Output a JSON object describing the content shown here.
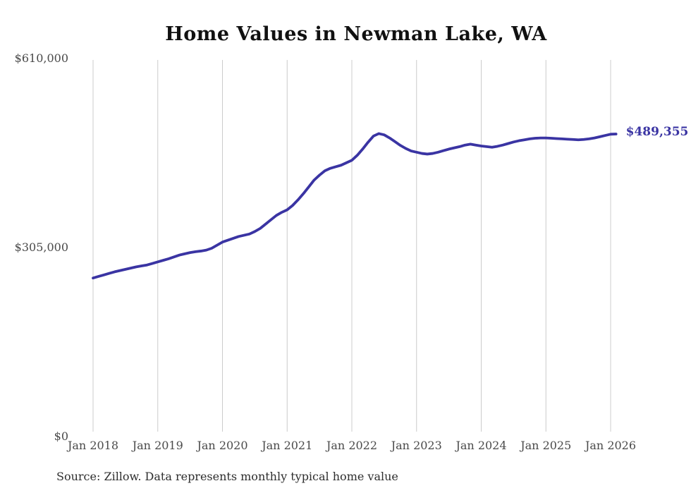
{
  "title": "Home Values in Newman Lake, WA",
  "source_note": "Source: Zillow. Data represents monthly typical home value",
  "end_label": "$489,355",
  "colors": {
    "line": "#3a34a3",
    "end_label": "#3a34a3",
    "grid": "#cccccc",
    "axis_text": "#4a4a4a",
    "title_text": "#111111",
    "source_text": "#2e2e2e",
    "background": "#ffffff"
  },
  "chart_data": {
    "type": "line",
    "title": "Home Values in Newman Lake, WA",
    "x_unit": "month",
    "x_start": "2018-01",
    "x_end": "2026-02",
    "xticks": [
      "Jan 2018",
      "Jan 2019",
      "Jan 2020",
      "Jan 2021",
      "Jan 2022",
      "Jan 2023",
      "Jan 2024",
      "Jan 2025",
      "Jan 2026"
    ],
    "yticks": [
      {
        "value": 610000,
        "label": "$610,000"
      },
      {
        "value": 305000,
        "label": "$305,000"
      },
      {
        "value": 0,
        "label": "$0"
      }
    ],
    "ylim": [
      0,
      610000
    ],
    "grid": "vertical-only",
    "legend": "none",
    "end_point_label": "$489,355",
    "end_point_value": 489355,
    "values": [
      257000,
      259500,
      262000,
      264500,
      267000,
      269000,
      271000,
      273000,
      275000,
      276500,
      278000,
      280500,
      283000,
      285500,
      288000,
      291000,
      294000,
      296000,
      298000,
      299500,
      300500,
      302000,
      305000,
      310000,
      315000,
      318000,
      321000,
      324000,
      326000,
      328000,
      332000,
      337000,
      344000,
      351000,
      358000,
      363000,
      367000,
      374000,
      383000,
      393000,
      404000,
      415000,
      423000,
      430000,
      434000,
      436500,
      439000,
      443000,
      447000,
      455000,
      465000,
      476000,
      486000,
      490000,
      488000,
      483000,
      477000,
      471000,
      466000,
      462000,
      460000,
      458000,
      457000,
      458000,
      460000,
      462500,
      465000,
      467000,
      469000,
      471500,
      473000,
      471500,
      470000,
      469000,
      468000,
      469500,
      471500,
      474000,
      476500,
      478500,
      480000,
      481500,
      482500,
      483000,
      483000,
      482500,
      482000,
      481500,
      481000,
      480500,
      480000,
      480500,
      481500,
      483000,
      485000,
      487000,
      489000,
      489355
    ]
  }
}
